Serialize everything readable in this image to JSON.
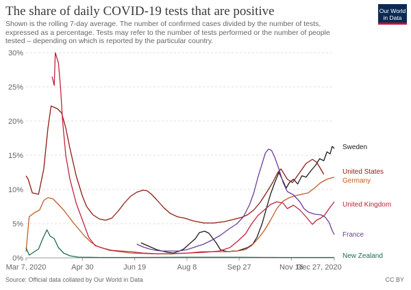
{
  "header": {
    "title": "The share of daily COVID-19 tests that are positive",
    "subtitle": "Shown is the rolling 7-day average. The number of confirmed cases divided by the number of tests, expressed as a percentage. Tests may refer to the number of tests performed or the number of people tested – depending on which is reported by the particular country.",
    "logo_line1": "Our World",
    "logo_line2": "in Data",
    "logo_bg": "#0b2a53",
    "logo_accent": "#c8102e"
  },
  "footer": {
    "source": "Source: Official data collated by Our World in Data",
    "license": "CC BY"
  },
  "chart_data": {
    "type": "line",
    "title": "The share of daily COVID-19 tests that are positive",
    "xlabel": "",
    "ylabel": "",
    "x_tick_labels": [
      "Mar 7, 2020",
      "Apr 30",
      "Jun 19",
      "Aug 8",
      "Sep 27",
      "Nov 16",
      "Dec 27, 2020"
    ],
    "x_tick_days": [
      0,
      54,
      104,
      154,
      204,
      254,
      295
    ],
    "y_tick_labels": [
      "0%",
      "5%",
      "10%",
      "15%",
      "20%",
      "25%",
      "30%"
    ],
    "y_ticks": [
      0,
      5,
      10,
      15,
      20,
      25,
      30
    ],
    "xlim_days": [
      0,
      295
    ],
    "ylim": [
      0,
      30
    ],
    "grid": "horizontal-dashed",
    "legend": "labels-at-line-ends-right",
    "series": [
      {
        "name": "Sweden",
        "color": "#1a1a1a",
        "points": [
          [
            110,
            2.2
          ],
          [
            116,
            1.8
          ],
          [
            125,
            1.2
          ],
          [
            130,
            1.0
          ],
          [
            136,
            0.8
          ],
          [
            141,
            0.7
          ],
          [
            147,
            1.0
          ],
          [
            151,
            1.3
          ],
          [
            156,
            2.0
          ],
          [
            162,
            2.8
          ],
          [
            166,
            3.7
          ],
          [
            171,
            3.9
          ],
          [
            175,
            3.6
          ],
          [
            178,
            3.0
          ],
          [
            182,
            2.2
          ],
          [
            186,
            1.2
          ],
          [
            190,
            1.0
          ],
          [
            194,
            0.9
          ],
          [
            198,
            1.0
          ],
          [
            202,
            1.0
          ],
          [
            206,
            1.2
          ],
          [
            212,
            1.5
          ],
          [
            217,
            2.0
          ],
          [
            221,
            3.0
          ],
          [
            226,
            5.0
          ],
          [
            230,
            7.2
          ],
          [
            234,
            9.3
          ],
          [
            238,
            11.0
          ],
          [
            242,
            12.5
          ],
          [
            246,
            11.2
          ],
          [
            249,
            10.2
          ],
          [
            252,
            11.0
          ],
          [
            256,
            11.5
          ],
          [
            260,
            10.8
          ],
          [
            264,
            12.0
          ],
          [
            268,
            11.8
          ],
          [
            273,
            12.8
          ],
          [
            277,
            13.5
          ],
          [
            281,
            14.5
          ],
          [
            285,
            14.2
          ],
          [
            288,
            15.5
          ],
          [
            291,
            15.2
          ],
          [
            293,
            16.3
          ],
          [
            295,
            16.0
          ]
        ]
      },
      {
        "name": "United States",
        "color": "#8c1a10",
        "points": [
          [
            0,
            12.0
          ],
          [
            2,
            11.5
          ],
          [
            6,
            9.5
          ],
          [
            12,
            9.3
          ],
          [
            17,
            13.0
          ],
          [
            21,
            19.0
          ],
          [
            24,
            22.2
          ],
          [
            30,
            21.8
          ],
          [
            34,
            21.2
          ],
          [
            38,
            19.0
          ],
          [
            42,
            16.0
          ],
          [
            48,
            12.0
          ],
          [
            54,
            9.0
          ],
          [
            58,
            7.5
          ],
          [
            64,
            6.3
          ],
          [
            70,
            5.7
          ],
          [
            76,
            5.5
          ],
          [
            82,
            5.8
          ],
          [
            88,
            6.8
          ],
          [
            94,
            8.0
          ],
          [
            100,
            9.0
          ],
          [
            106,
            9.6
          ],
          [
            112,
            9.9
          ],
          [
            116,
            9.8
          ],
          [
            120,
            9.3
          ],
          [
            125,
            8.5
          ],
          [
            132,
            7.3
          ],
          [
            138,
            6.5
          ],
          [
            145,
            6.0
          ],
          [
            152,
            5.8
          ],
          [
            160,
            5.4
          ],
          [
            170,
            5.1
          ],
          [
            180,
            5.1
          ],
          [
            190,
            5.3
          ],
          [
            198,
            5.6
          ],
          [
            206,
            5.9
          ],
          [
            212,
            6.3
          ],
          [
            218,
            7.0
          ],
          [
            224,
            8.1
          ],
          [
            230,
            9.5
          ],
          [
            236,
            11.0
          ],
          [
            241,
            12.5
          ],
          [
            244,
            13.0
          ],
          [
            250,
            11.5
          ],
          [
            255,
            11.0
          ],
          [
            262,
            12.5
          ],
          [
            268,
            13.8
          ],
          [
            274,
            14.4
          ],
          [
            278,
            14.0
          ],
          [
            282,
            13.0
          ],
          [
            285,
            12.2
          ]
        ]
      },
      {
        "name": "Germany",
        "color": "#c15a24",
        "points": [
          [
            0,
            0.9
          ],
          [
            3,
            6.0
          ],
          [
            8,
            6.6
          ],
          [
            13,
            7.0
          ],
          [
            17,
            8.4
          ],
          [
            21,
            8.8
          ],
          [
            26,
            8.6
          ],
          [
            31,
            7.8
          ],
          [
            36,
            7.0
          ],
          [
            41,
            6.0
          ],
          [
            46,
            5.0
          ],
          [
            51,
            4.1
          ],
          [
            56,
            3.2
          ],
          [
            62,
            2.3
          ],
          [
            68,
            1.7
          ],
          [
            74,
            1.4
          ],
          [
            80,
            1.1
          ],
          [
            90,
            0.9
          ],
          [
            100,
            0.7
          ],
          [
            120,
            0.6
          ],
          [
            140,
            0.6
          ],
          [
            155,
            0.7
          ],
          [
            168,
            0.9
          ],
          [
            180,
            0.9
          ],
          [
            192,
            0.9
          ],
          [
            202,
            1.0
          ],
          [
            210,
            1.2
          ],
          [
            216,
            1.8
          ],
          [
            222,
            2.8
          ],
          [
            228,
            4.0
          ],
          [
            234,
            5.5
          ],
          [
            240,
            7.2
          ],
          [
            246,
            8.3
          ],
          [
            252,
            8.8
          ],
          [
            258,
            9.1
          ],
          [
            264,
            9.3
          ],
          [
            270,
            9.5
          ],
          [
            276,
            10.2
          ],
          [
            282,
            11.0
          ],
          [
            288,
            11.5
          ],
          [
            295,
            11.8
          ]
        ]
      },
      {
        "name": "United Kingdom",
        "color": "#c0203a",
        "points": [
          [
            25,
            26.5
          ],
          [
            27,
            25.2
          ],
          [
            28,
            30.0
          ],
          [
            31,
            28.5
          ],
          [
            33,
            25.0
          ],
          [
            35,
            20.0
          ],
          [
            38,
            15.0
          ],
          [
            42,
            11.5
          ],
          [
            48,
            8.0
          ],
          [
            54,
            5.5
          ],
          [
            60,
            3.0
          ],
          [
            66,
            1.8
          ],
          [
            74,
            1.4
          ],
          [
            82,
            1.1
          ],
          [
            90,
            1.0
          ],
          [
            100,
            0.9
          ],
          [
            112,
            0.7
          ],
          [
            125,
            0.6
          ],
          [
            140,
            0.6
          ],
          [
            155,
            0.7
          ],
          [
            170,
            0.8
          ],
          [
            185,
            1.0
          ],
          [
            195,
            1.5
          ],
          [
            203,
            2.5
          ],
          [
            210,
            3.5
          ],
          [
            216,
            5.0
          ],
          [
            222,
            6.2
          ],
          [
            228,
            7.0
          ],
          [
            234,
            7.8
          ],
          [
            240,
            8.2
          ],
          [
            246,
            8.0
          ],
          [
            250,
            7.2
          ],
          [
            256,
            7.7
          ],
          [
            262,
            7.0
          ],
          [
            268,
            6.0
          ],
          [
            274,
            4.9
          ],
          [
            278,
            5.5
          ],
          [
            282,
            5.8
          ],
          [
            286,
            6.3
          ],
          [
            290,
            7.2
          ],
          [
            295,
            8.2
          ]
        ]
      },
      {
        "name": "France",
        "color": "#6a3d9a",
        "points": [
          [
            106,
            2.0
          ],
          [
            112,
            1.6
          ],
          [
            118,
            1.3
          ],
          [
            124,
            1.1
          ],
          [
            130,
            1.0
          ],
          [
            138,
            1.0
          ],
          [
            146,
            1.0
          ],
          [
            154,
            1.2
          ],
          [
            162,
            1.6
          ],
          [
            170,
            2.0
          ],
          [
            178,
            2.6
          ],
          [
            186,
            3.3
          ],
          [
            194,
            4.2
          ],
          [
            202,
            5.0
          ],
          [
            208,
            6.0
          ],
          [
            214,
            7.8
          ],
          [
            218,
            9.5
          ],
          [
            222,
            11.8
          ],
          [
            226,
            13.8
          ],
          [
            229,
            15.3
          ],
          [
            232,
            15.9
          ],
          [
            235,
            15.7
          ],
          [
            238,
            14.7
          ],
          [
            242,
            13.0
          ],
          [
            246,
            11.0
          ],
          [
            250,
            9.7
          ],
          [
            256,
            9.2
          ],
          [
            262,
            8.2
          ],
          [
            266,
            7.2
          ],
          [
            270,
            6.7
          ],
          [
            276,
            6.4
          ],
          [
            282,
            6.3
          ],
          [
            286,
            6.0
          ],
          [
            290,
            5.2
          ],
          [
            293,
            4.0
          ],
          [
            295,
            3.4
          ]
        ]
      },
      {
        "name": "New Zealand",
        "color": "#1a6b4f",
        "points": [
          [
            0,
            1.5
          ],
          [
            3,
            0.4
          ],
          [
            7,
            0.8
          ],
          [
            12,
            1.3
          ],
          [
            16,
            2.8
          ],
          [
            20,
            4.1
          ],
          [
            23,
            3.2
          ],
          [
            27,
            2.8
          ],
          [
            31,
            1.5
          ],
          [
            36,
            0.7
          ],
          [
            42,
            0.3
          ],
          [
            50,
            0.1
          ],
          [
            70,
            0.05
          ],
          [
            100,
            0.05
          ],
          [
            150,
            0.08
          ],
          [
            200,
            0.08
          ],
          [
            250,
            0.05
          ],
          [
            295,
            0.05
          ]
        ]
      }
    ]
  }
}
